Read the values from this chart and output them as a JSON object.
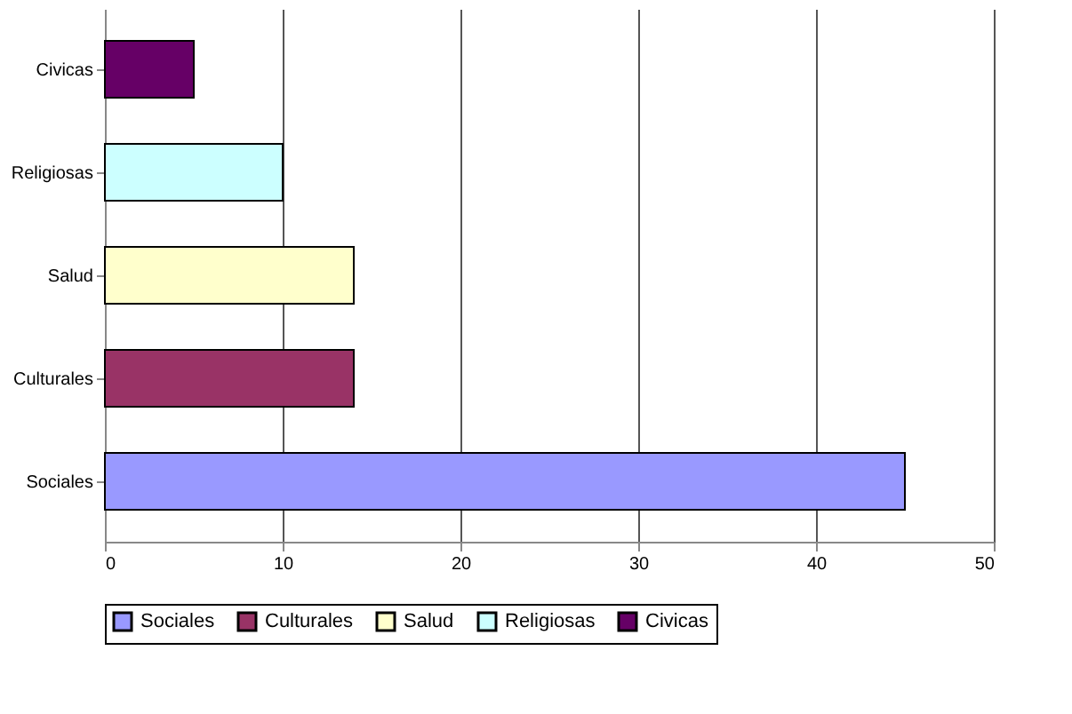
{
  "chart_data": {
    "type": "bar",
    "orientation": "horizontal",
    "categories": [
      "Civicas",
      "Religiosas",
      "Salud",
      "Culturales",
      "Sociales"
    ],
    "series": [
      {
        "name": "Sociales",
        "color": "#9999ff",
        "values": [
          null,
          null,
          null,
          null,
          45
        ]
      },
      {
        "name": "Culturales",
        "color": "#993366",
        "values": [
          null,
          null,
          null,
          14,
          null
        ]
      },
      {
        "name": "Salud",
        "color": "#ffffcc",
        "values": [
          null,
          null,
          14,
          null,
          null
        ]
      },
      {
        "name": "Religiosas",
        "color": "#ccffff",
        "values": [
          null,
          10,
          null,
          null,
          null
        ]
      },
      {
        "name": "Civicas",
        "color": "#660066",
        "values": [
          5,
          null,
          null,
          null,
          null
        ]
      }
    ],
    "xlim": [
      0,
      50
    ],
    "xticks": [
      0,
      10,
      20,
      30,
      40,
      50
    ],
    "grid": "x",
    "legend": "bottom"
  }
}
